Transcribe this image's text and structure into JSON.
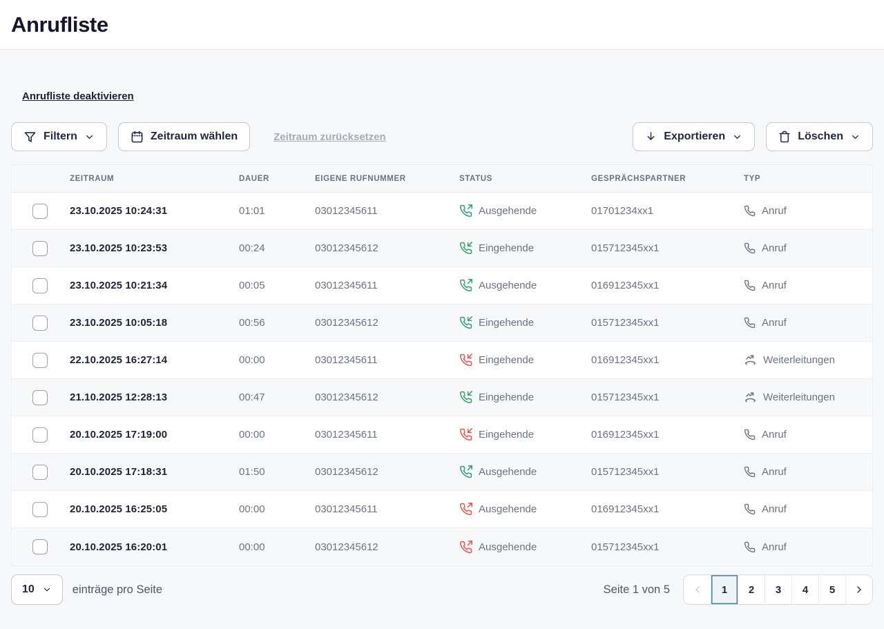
{
  "page": {
    "title": "Anrufliste"
  },
  "colors": {
    "status_green": "#3FA173",
    "status_red": "#E15B5B",
    "active_page_border": "#4F7E95",
    "active_page_bg": "#EDF5F9"
  },
  "actions": {
    "deactivate_link": "Anrufliste deaktivieren",
    "filter": "Filtern",
    "choose_range": "Zeitraum wählen",
    "reset_range": "Zeitraum zurücksetzen",
    "export": "Exportieren",
    "delete": "Löschen"
  },
  "table": {
    "headers": [
      "ZEITRAUM",
      "DAUER",
      "EIGENE RUFNUMMER",
      "STATUS",
      "GESPRÄCHSPARTNER",
      "TYP"
    ],
    "rows": [
      {
        "zeitraum": "23.10.2025 10:24:31",
        "dauer": "01:01",
        "rufnummer": "03012345611",
        "status": "Ausgehende",
        "direction": "outgoing",
        "result": "green",
        "partner": "01701234xx1",
        "typ": "Anruf",
        "typ_kind": "call"
      },
      {
        "zeitraum": "23.10.2025 10:23:53",
        "dauer": "00:24",
        "rufnummer": "03012345612",
        "status": "Eingehende",
        "direction": "incoming",
        "result": "green",
        "partner": "015712345xx1",
        "typ": "Anruf",
        "typ_kind": "call"
      },
      {
        "zeitraum": "23.10.2025 10:21:34",
        "dauer": "00:05",
        "rufnummer": "03012345611",
        "status": "Ausgehende",
        "direction": "outgoing",
        "result": "green",
        "partner": "016912345xx1",
        "typ": "Anruf",
        "typ_kind": "call"
      },
      {
        "zeitraum": "23.10.2025 10:05:18",
        "dauer": "00:56",
        "rufnummer": "03012345612",
        "status": "Eingehende",
        "direction": "incoming",
        "result": "green",
        "partner": "015712345xx1",
        "typ": "Anruf",
        "typ_kind": "call"
      },
      {
        "zeitraum": "22.10.2025 16:27:14",
        "dauer": "00:00",
        "rufnummer": "03012345611",
        "status": "Eingehende",
        "direction": "incoming",
        "result": "red",
        "partner": "016912345xx1",
        "typ": "Weiterleitungen",
        "typ_kind": "forward"
      },
      {
        "zeitraum": "21.10.2025 12:28:13",
        "dauer": "00:47",
        "rufnummer": "03012345612",
        "status": "Eingehende",
        "direction": "incoming",
        "result": "green",
        "partner": "015712345xx1",
        "typ": "Weiterleitungen",
        "typ_kind": "forward"
      },
      {
        "zeitraum": "20.10.2025 17:19:00",
        "dauer": "00:00",
        "rufnummer": "03012345611",
        "status": "Eingehende",
        "direction": "incoming",
        "result": "red",
        "partner": "016912345xx1",
        "typ": "Anruf",
        "typ_kind": "call"
      },
      {
        "zeitraum": "20.10.2025 17:18:31",
        "dauer": "01:50",
        "rufnummer": "03012345612",
        "status": "Ausgehende",
        "direction": "outgoing",
        "result": "green",
        "partner": "015712345xx1",
        "typ": "Anruf",
        "typ_kind": "call"
      },
      {
        "zeitraum": "20.10.2025 16:25:05",
        "dauer": "00:00",
        "rufnummer": "03012345611",
        "status": "Ausgehende",
        "direction": "outgoing",
        "result": "red",
        "partner": "016912345xx1",
        "typ": "Anruf",
        "typ_kind": "call"
      },
      {
        "zeitraum": "20.10.2025 16:20:01",
        "dauer": "00:00",
        "rufnummer": "03012345612",
        "status": "Ausgehende",
        "direction": "outgoing",
        "result": "red",
        "partner": "015712345xx1",
        "typ": "Anruf",
        "typ_kind": "call"
      }
    ]
  },
  "pagination": {
    "per_page_value": "10",
    "per_page_label": "einträge pro Seite",
    "page_status": "Seite 1 von 5",
    "pages": [
      "1",
      "2",
      "3",
      "4",
      "5"
    ],
    "active_page": "1"
  }
}
